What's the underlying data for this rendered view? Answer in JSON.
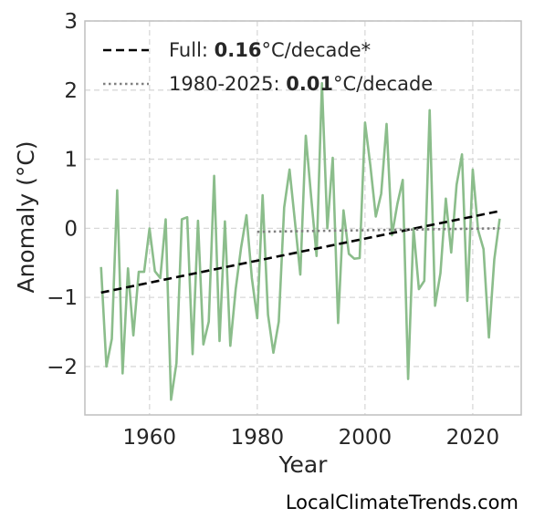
{
  "colors": {
    "series": "#8bbd8b",
    "full_trend": "#000000",
    "recent_trend": "#808080",
    "grid": "#d9d9d9",
    "axes_frame": "#bfbfbf",
    "background": "#ffffff"
  },
  "legend": {
    "full_prefix": "Full: ",
    "full_value": "0.16",
    "full_suffix": "°C/decade*",
    "recent_prefix": "1980-2025: ",
    "recent_value": "0.01",
    "recent_suffix": "°C/decade"
  },
  "credit": "LocalClimateTrends.com",
  "chart_data": {
    "type": "line",
    "title": "",
    "xlabel": "Year",
    "ylabel": "Anomaly (°C)",
    "xlim": [
      1948,
      2029
    ],
    "ylim": [
      -2.7,
      3.0
    ],
    "xticks": [
      1960,
      1980,
      2000,
      2020
    ],
    "yticks": [
      -2,
      -1,
      0,
      1,
      2,
      3
    ],
    "ytick_labels": [
      "−2",
      "−1",
      "0",
      "1",
      "2",
      "3"
    ],
    "grid": true,
    "legend_position": "top-left",
    "series": [
      {
        "name": "",
        "x": [
          1951,
          1952,
          1953,
          1954,
          1955,
          1956,
          1957,
          1958,
          1959,
          1960,
          1961,
          1962,
          1963,
          1964,
          1965,
          1966,
          1967,
          1968,
          1969,
          1970,
          1971,
          1972,
          1973,
          1974,
          1975,
          1976,
          1977,
          1978,
          1979,
          1980,
          1981,
          1982,
          1983,
          1984,
          1985,
          1986,
          1987,
          1988,
          1989,
          1990,
          1991,
          1992,
          1993,
          1994,
          1995,
          1996,
          1997,
          1998,
          1999,
          2000,
          2001,
          2002,
          2003,
          2004,
          2005,
          2006,
          2007,
          2008,
          2009,
          2010,
          2011,
          2012,
          2013,
          2014,
          2015,
          2016,
          2017,
          2018,
          2019,
          2020,
          2021,
          2022,
          2023,
          2024,
          2025
        ],
        "y": [
          -0.56,
          -2.0,
          -1.6,
          0.55,
          -2.1,
          -0.58,
          -1.55,
          -0.63,
          -0.63,
          0.0,
          -0.62,
          -0.72,
          0.13,
          -2.48,
          -1.95,
          0.13,
          0.16,
          -1.82,
          0.11,
          -1.68,
          -1.35,
          0.76,
          -1.63,
          0.1,
          -1.7,
          -0.88,
          -0.28,
          0.19,
          -0.72,
          -1.3,
          0.48,
          -1.25,
          -1.8,
          -1.35,
          0.3,
          0.85,
          0.1,
          -0.67,
          1.34,
          0.45,
          -0.4,
          2.1,
          0.0,
          1.02,
          -1.37,
          0.26,
          -0.37,
          -0.44,
          -0.43,
          1.53,
          0.9,
          0.17,
          0.5,
          1.51,
          -0.1,
          0.35,
          0.7,
          -2.18,
          0.0,
          -0.88,
          -0.76,
          1.71,
          -1.12,
          -0.65,
          0.43,
          -0.35,
          0.63,
          1.07,
          -1.05,
          0.85,
          -0.03,
          -0.3,
          -1.58,
          -0.45,
          0.14
        ]
      },
      {
        "name": "Full",
        "x": [
          1951,
          2025
        ],
        "y": [
          -0.93,
          0.25
        ]
      },
      {
        "name": "1980-2025",
        "x": [
          1980,
          2025
        ],
        "y": [
          -0.05,
          0.0
        ]
      }
    ]
  }
}
